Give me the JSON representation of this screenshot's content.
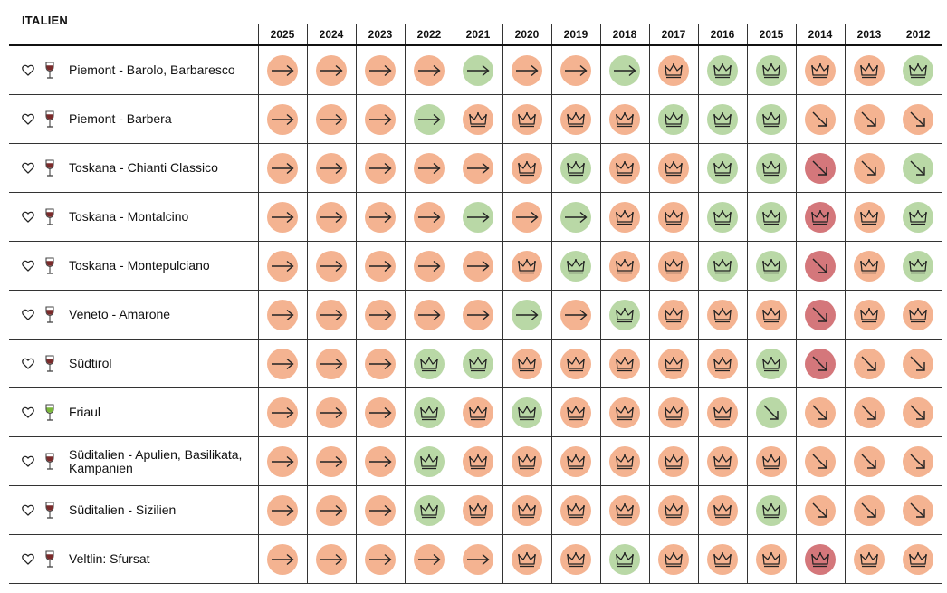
{
  "title": "ITALIEN",
  "years": [
    "2025",
    "2024",
    "2023",
    "2022",
    "2021",
    "2020",
    "2019",
    "2018",
    "2017",
    "2016",
    "2015",
    "2014",
    "2013",
    "2012"
  ],
  "colors": {
    "orange": "#f4b391",
    "green": "#b9d8a6",
    "red": "#d4777b",
    "wine_red": "#7a2b2b",
    "wine_white": "#7ab83a"
  },
  "legend_codes": {
    "A": "arrow-right-icon",
    "C": "crown-icon",
    "D": "arrow-down-right-icon",
    "o": "orange",
    "g": "green",
    "r": "red"
  },
  "regions": [
    {
      "name": "Piemont - Barolo, Barbaresco",
      "wine": "red",
      "cells": [
        "oA",
        "oA",
        "oA",
        "oA",
        "gA",
        "oA",
        "oA",
        "gA",
        "oC",
        "gC",
        "gC",
        "oC",
        "oC",
        "gC"
      ]
    },
    {
      "name": "Piemont - Barbera",
      "wine": "red",
      "cells": [
        "oA",
        "oA",
        "oA",
        "gA",
        "oC",
        "oC",
        "oC",
        "oC",
        "gC",
        "gC",
        "gC",
        "oD",
        "oD",
        "oD"
      ]
    },
    {
      "name": "Toskana - Chianti Classico",
      "wine": "red",
      "cells": [
        "oA",
        "oA",
        "oA",
        "oA",
        "oA",
        "oC",
        "gC",
        "oC",
        "oC",
        "gC",
        "gC",
        "rD",
        "oD",
        "gD"
      ]
    },
    {
      "name": "Toskana - Montalcino",
      "wine": "red",
      "cells": [
        "oA",
        "oA",
        "oA",
        "oA",
        "gA",
        "oA",
        "gA",
        "oC",
        "oC",
        "gC",
        "gC",
        "rC",
        "oC",
        "gC"
      ]
    },
    {
      "name": "Toskana - Montepulciano",
      "wine": "red",
      "cells": [
        "oA",
        "oA",
        "oA",
        "oA",
        "oA",
        "oC",
        "gC",
        "oC",
        "oC",
        "gC",
        "gC",
        "rD",
        "oC",
        "gC"
      ]
    },
    {
      "name": "Veneto - Amarone",
      "wine": "red",
      "cells": [
        "oA",
        "oA",
        "oA",
        "oA",
        "oA",
        "gA",
        "oA",
        "gC",
        "oC",
        "oC",
        "oC",
        "rD",
        "oC",
        "oC"
      ]
    },
    {
      "name": "Südtirol",
      "wine": "red",
      "cells": [
        "oA",
        "oA",
        "oA",
        "gC",
        "gC",
        "oC",
        "oC",
        "oC",
        "oC",
        "oC",
        "gC",
        "rD",
        "oD",
        "oD"
      ]
    },
    {
      "name": "Friaul",
      "wine": "white",
      "cells": [
        "oA",
        "oA",
        "oA",
        "gC",
        "oC",
        "gC",
        "oC",
        "oC",
        "oC",
        "oC",
        "gD",
        "oD",
        "oD",
        "oD"
      ]
    },
    {
      "name": "Süditalien - Apulien, Basilikata, Kampanien",
      "wine": "red",
      "cells": [
        "oA",
        "oA",
        "oA",
        "gC",
        "oC",
        "oC",
        "oC",
        "oC",
        "oC",
        "oC",
        "oC",
        "oD",
        "oD",
        "oD"
      ]
    },
    {
      "name": "Süditalien - Sizilien",
      "wine": "red",
      "cells": [
        "oA",
        "oA",
        "oA",
        "gC",
        "oC",
        "oC",
        "oC",
        "oC",
        "oC",
        "oC",
        "gC",
        "oD",
        "oD",
        "oD"
      ]
    },
    {
      "name": "Veltlin: Sfursat",
      "wine": "red",
      "cells": [
        "oA",
        "oA",
        "oA",
        "oA",
        "oA",
        "oC",
        "oC",
        "gC",
        "oC",
        "oC",
        "oC",
        "rC",
        "oC",
        "oC"
      ]
    }
  ]
}
